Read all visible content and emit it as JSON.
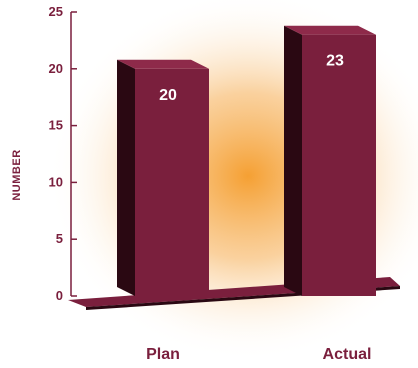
{
  "chart_data": {
    "type": "bar",
    "title": "",
    "xlabel": "",
    "ylabel": "NUMBER",
    "categories": [
      "Plan",
      "Actual"
    ],
    "values": [
      20,
      23
    ],
    "data_labels": [
      "20",
      "23"
    ],
    "ylim": [
      0,
      25
    ],
    "yticks": [
      "0",
      "5",
      "10",
      "15",
      "20",
      "25"
    ],
    "grid": false,
    "legend": "none",
    "style": "3d",
    "colors": {
      "bar_front": "#7a1f3d",
      "bar_side": "#2a0812",
      "bar_top": "#8e2a4a",
      "floor": "#7a1f3d",
      "text": "#7a1f3d",
      "glow": "#f5a033"
    }
  }
}
